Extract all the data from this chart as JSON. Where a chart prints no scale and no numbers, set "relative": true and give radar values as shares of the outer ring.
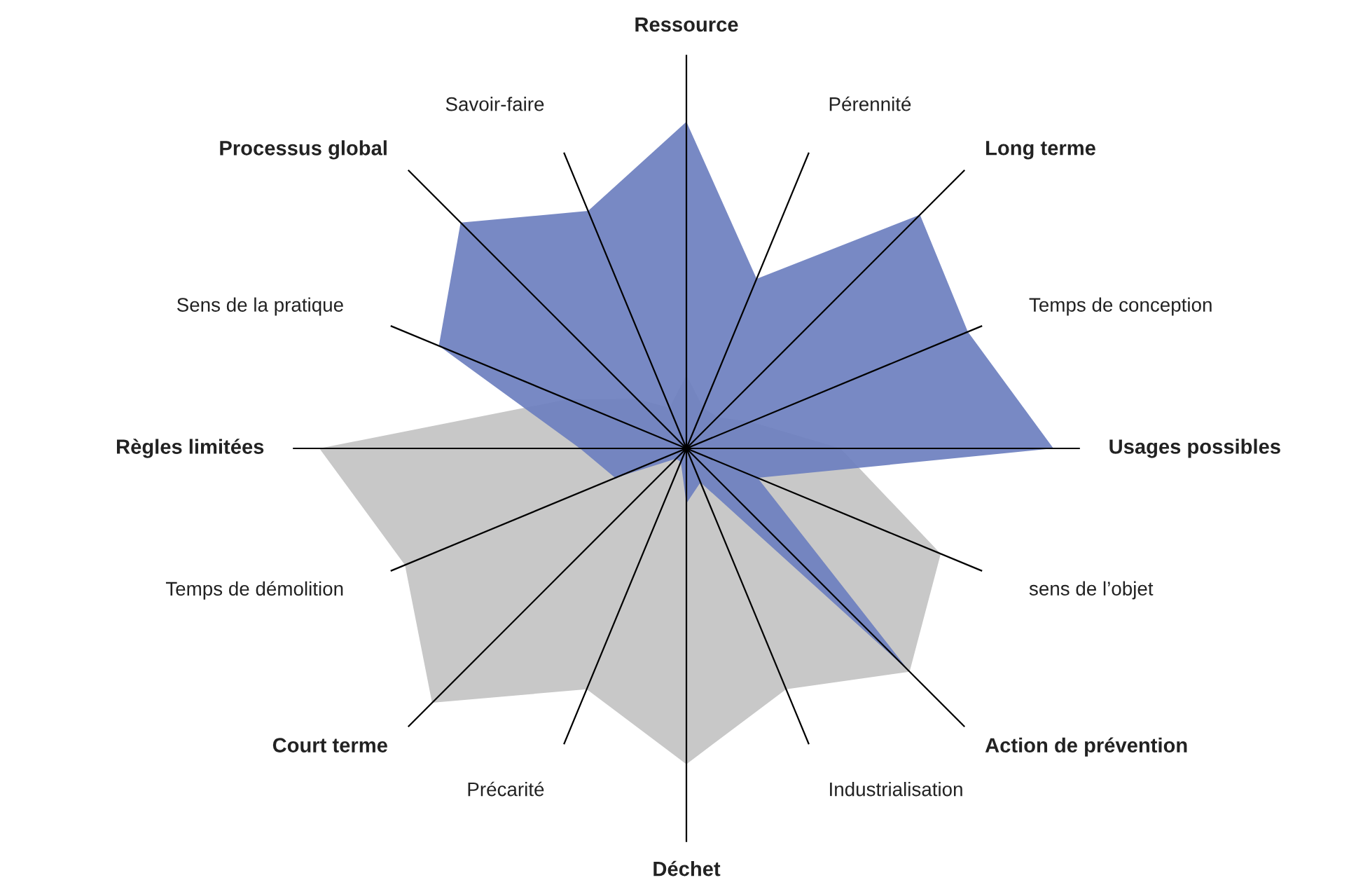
{
  "chart_data": {
    "type": "radar",
    "relative": true,
    "categories": [
      "Ressource",
      "Pérennité",
      "Long terme",
      "Temps de conception",
      "Usages possibles",
      "sens de l’objet",
      "Action de prévention",
      "Industrialisation",
      "Déchet",
      "Précarité",
      "Court terme",
      "Temps de démolition",
      "Règles limitées",
      "Sens de la pratique",
      "Processus global",
      "Savoir-faire"
    ],
    "series": [
      {
        "color": "#c8c8c8",
        "values": [
          0.2,
          0.12,
          0.12,
          0.19,
          0.42,
          0.75,
          0.86,
          0.71,
          0.86,
          0.71,
          0.98,
          0.83,
          1.0,
          0.35,
          0.19,
          0.12
        ]
      },
      {
        "color": "#6d7fbf",
        "values": [
          0.89,
          0.5,
          0.9,
          0.83,
          1.0,
          0.21,
          0.86,
          0.1,
          0.15,
          0.04,
          0.04,
          0.21,
          0.29,
          0.73,
          0.87,
          0.7
        ]
      }
    ]
  }
}
